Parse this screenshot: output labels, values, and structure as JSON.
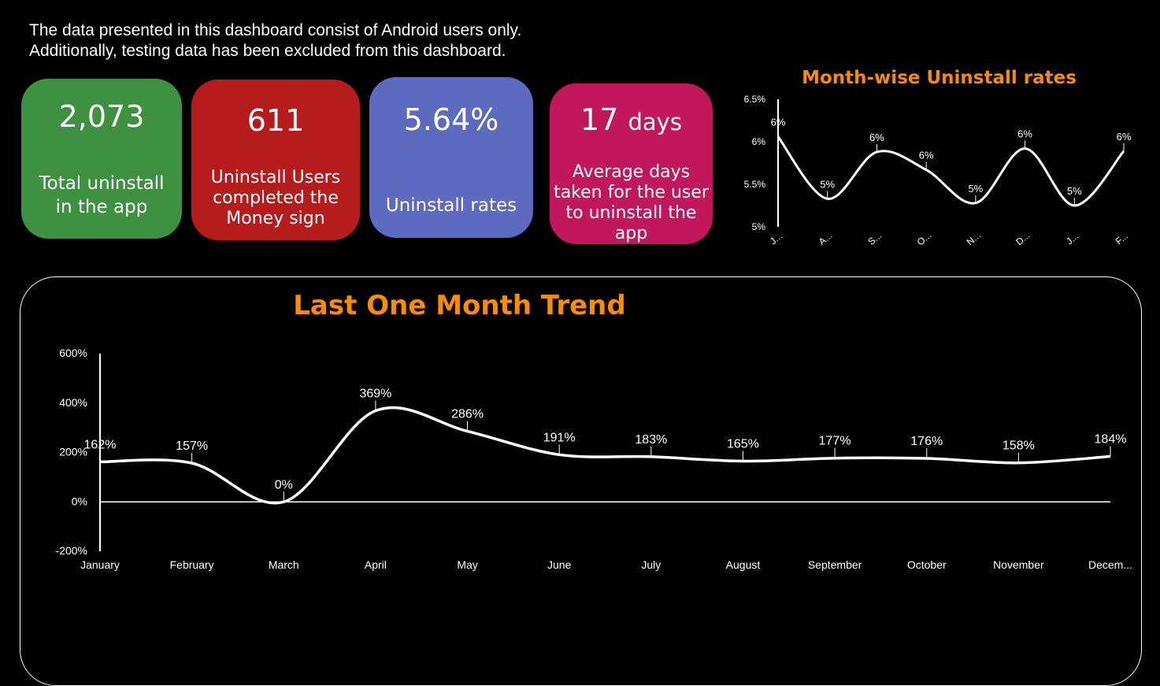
{
  "note": {
    "line1": "The data presented in this dashboard consist of Android users only.",
    "line2": "Additionally, testing data has been excluded from this dashboard."
  },
  "kpis": [
    {
      "value": "2,073",
      "unit": "",
      "label_lines": [
        "Total uninstall",
        "in the app"
      ],
      "color": "#3d9140"
    },
    {
      "value": "611",
      "unit": "",
      "label_lines": [
        "Uninstall Users",
        "completed the",
        "Money sign"
      ],
      "color": "#b71c1c"
    },
    {
      "value": "5.64%",
      "unit": "",
      "label_lines": [
        "Uninstall rates"
      ],
      "color": "#5c6bc0"
    },
    {
      "value": "17",
      "unit": "days",
      "label_lines": [
        "Average days",
        "taken for the user",
        "to uninstall the app"
      ],
      "color": "#c2185b"
    }
  ],
  "accent_color": "#fb8c00",
  "chart_data": [
    {
      "type": "line",
      "title": "Month-wise Uninstall rates",
      "categories": [
        "J...",
        "A...",
        "S...",
        "O...",
        "N...",
        "D...",
        "J...",
        "F..."
      ],
      "values": [
        6.06,
        5.33,
        5.88,
        5.67,
        5.28,
        5.92,
        5.25,
        5.89
      ],
      "data_labels": [
        "6%",
        "5%",
        "6%",
        "6%",
        "5%",
        "6%",
        "5%",
        "6%"
      ],
      "yticks": [
        "5%",
        "5.5%",
        "6%",
        "6.5%"
      ],
      "ylim": [
        5,
        6.5
      ],
      "grid": false
    },
    {
      "type": "line",
      "title": "Last One Month Trend",
      "categories": [
        "January",
        "February",
        "March",
        "April",
        "May",
        "June",
        "July",
        "August",
        "September",
        "October",
        "November",
        "Decem..."
      ],
      "values": [
        162,
        157,
        0,
        369,
        286,
        191,
        183,
        165,
        177,
        176,
        158,
        184
      ],
      "data_labels": [
        "162%",
        "157%",
        "0%",
        "369%",
        "286%",
        "191%",
        "183%",
        "165%",
        "177%",
        "176%",
        "158%",
        "184%"
      ],
      "yticks": [
        "-200%",
        "0%",
        "200%",
        "400%",
        "600%"
      ],
      "ylim": [
        -200,
        600
      ],
      "zero_line": true,
      "grid": false
    }
  ]
}
